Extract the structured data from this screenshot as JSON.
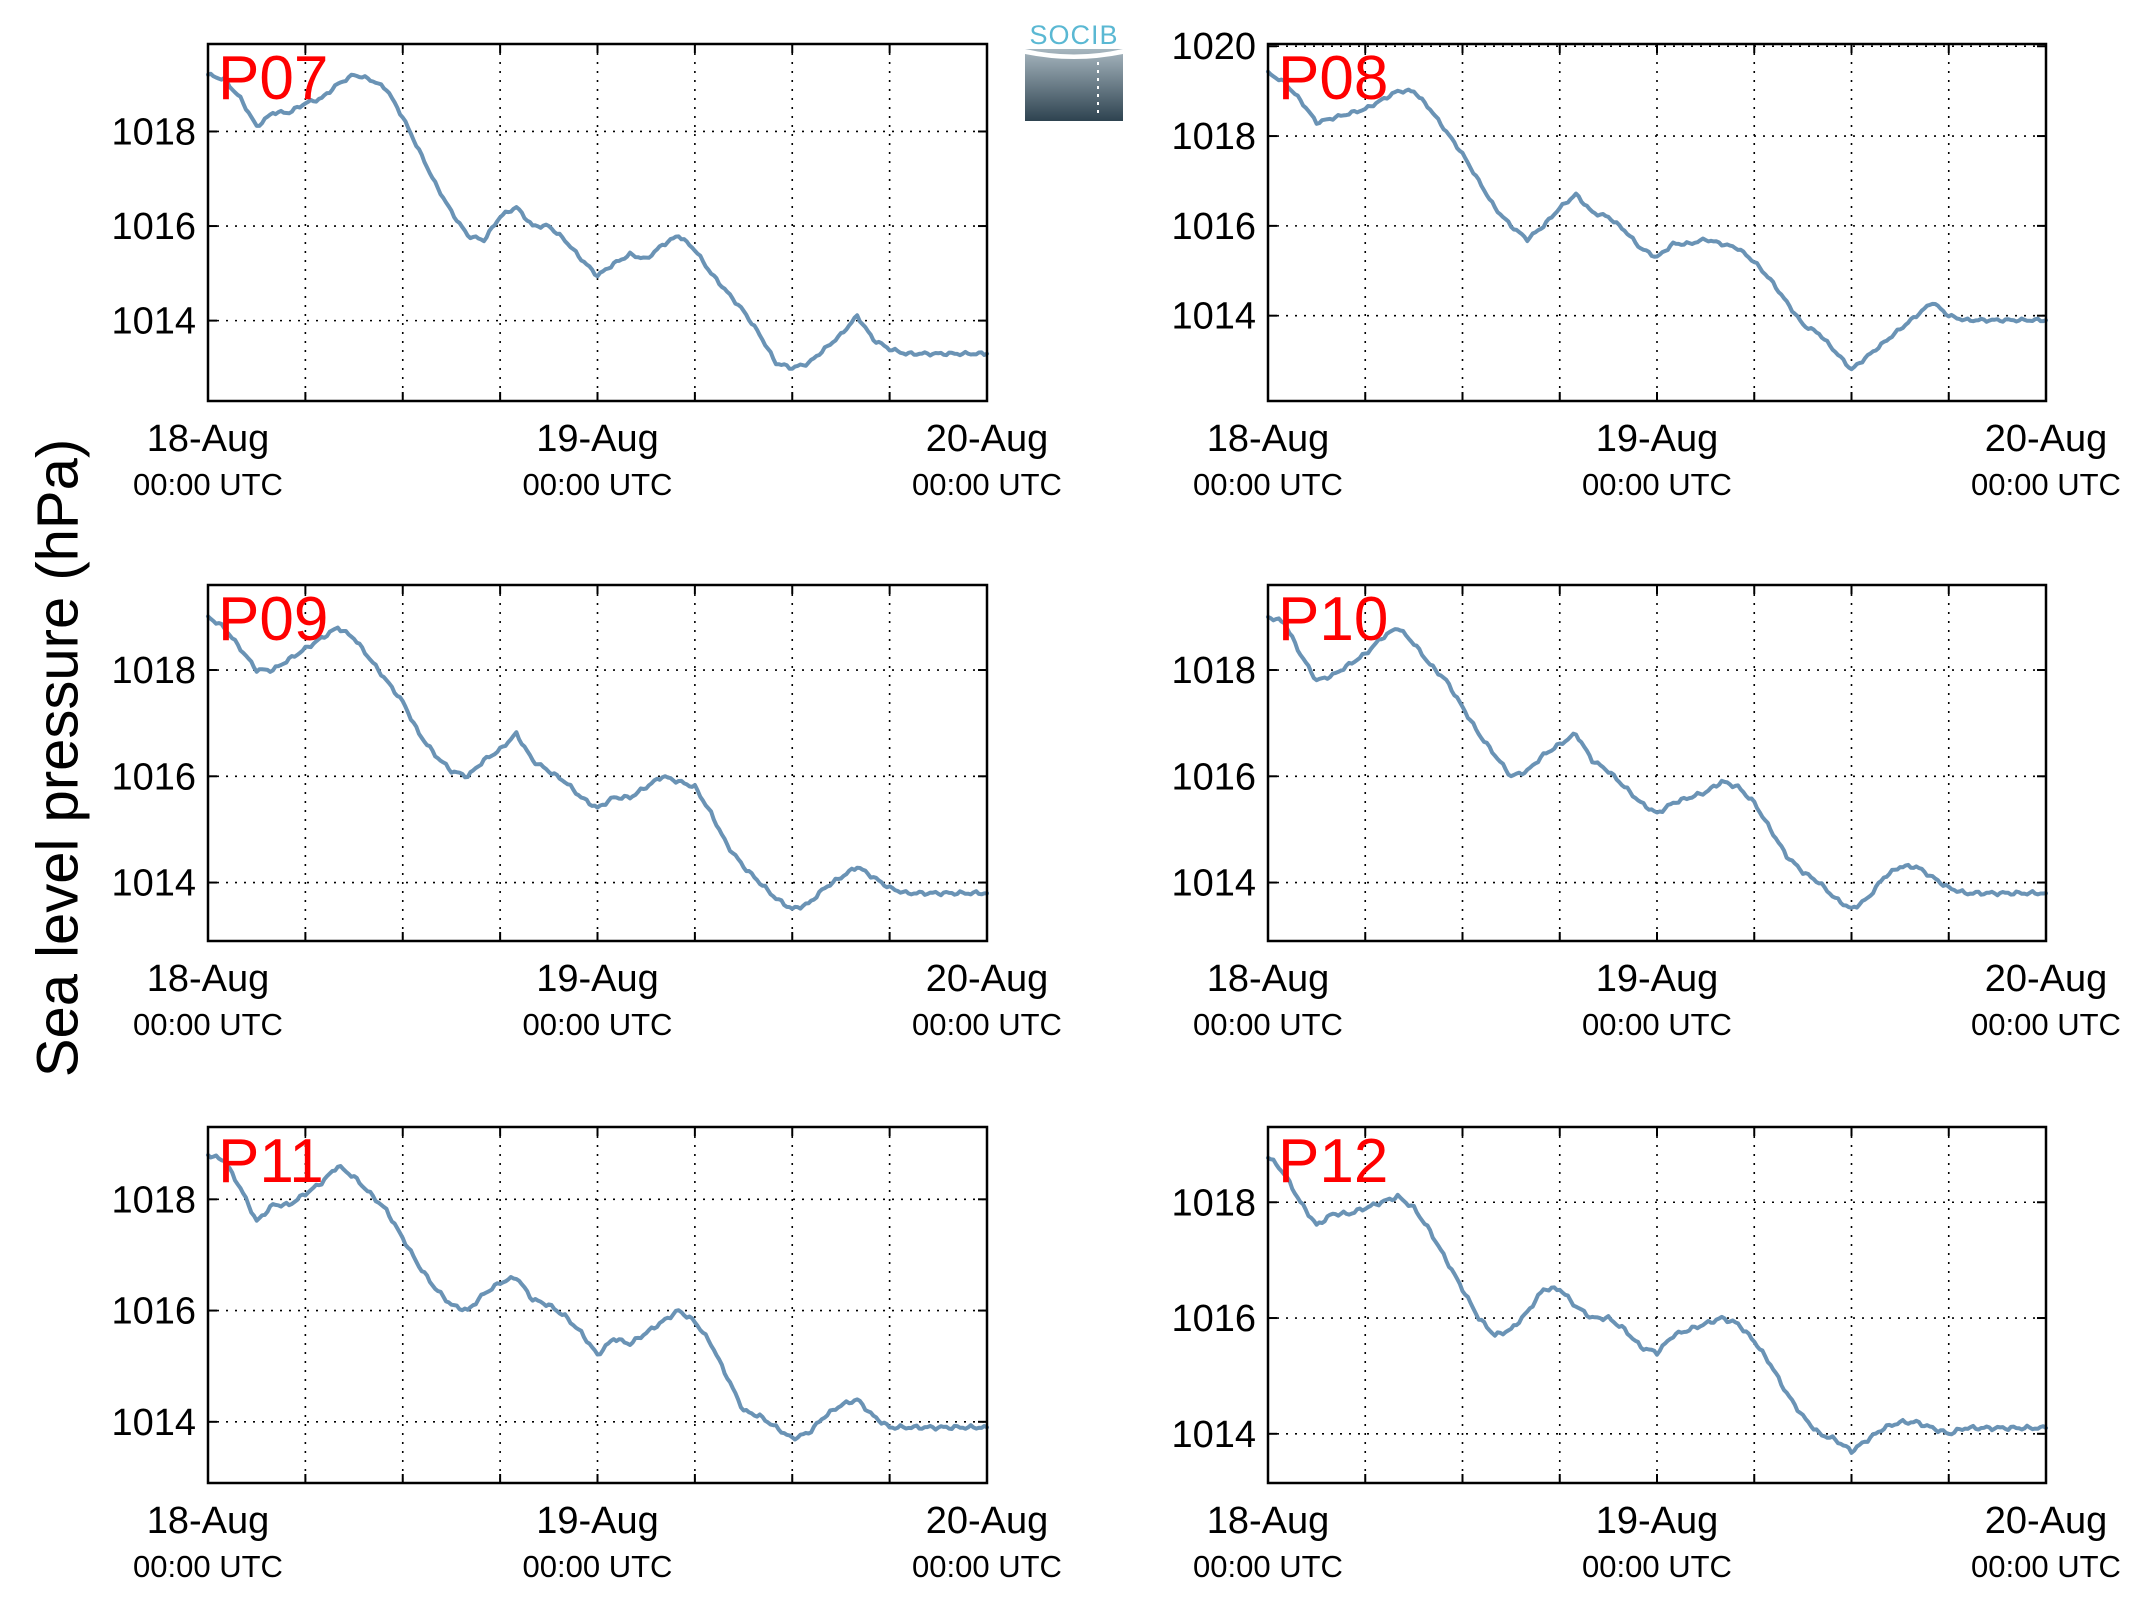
{
  "figure": {
    "ylabel": "Sea level pressure (hPa)",
    "logo": {
      "text": "SOCIB"
    },
    "colors": {
      "line": "#6a93b5",
      "title": "#ff0000"
    }
  },
  "chart_data": [
    {
      "type": "line",
      "title": "P07",
      "xticks": [
        {
          "date": "18-Aug",
          "time": "00:00 UTC"
        },
        {
          "date": "19-Aug",
          "time": "00:00 UTC"
        },
        {
          "date": "20-Aug",
          "time": "00:00 UTC"
        }
      ],
      "xlim": [
        0,
        48
      ],
      "ylim": [
        1012.3,
        1019.85
      ],
      "yticks": [
        1014,
        1016,
        1018
      ],
      "grid": true,
      "series": [
        {
          "x": [
            0,
            1,
            2,
            3,
            4,
            5,
            6,
            7,
            8,
            9,
            10,
            11,
            12,
            13,
            14,
            15,
            16,
            17,
            18,
            19,
            20,
            21,
            22,
            23,
            24,
            25,
            26,
            27,
            28,
            29,
            30,
            31,
            32,
            33,
            34,
            35,
            36,
            37,
            38,
            39,
            40,
            41,
            42,
            43,
            44,
            45,
            46,
            47,
            48
          ],
          "values": [
            1019.2,
            1019.1,
            1018.7,
            1018.1,
            1018.4,
            1018.4,
            1018.6,
            1018.7,
            1019.0,
            1019.2,
            1019.1,
            1018.9,
            1018.3,
            1017.6,
            1016.9,
            1016.3,
            1015.8,
            1015.7,
            1016.2,
            1016.4,
            1016.0,
            1016.0,
            1015.7,
            1015.3,
            1014.95,
            1015.2,
            1015.4,
            1015.3,
            1015.6,
            1015.8,
            1015.5,
            1015.0,
            1014.6,
            1014.2,
            1013.7,
            1013.1,
            1013.0,
            1013.1,
            1013.4,
            1013.7,
            1014.1,
            1013.6,
            1013.4,
            1013.3,
            1013.3,
            1013.3,
            1013.3,
            1013.3,
            1013.3
          ]
        }
      ]
    },
    {
      "type": "line",
      "title": "P08",
      "xticks": [
        {
          "date": "18-Aug",
          "time": "00:00 UTC"
        },
        {
          "date": "19-Aug",
          "time": "00:00 UTC"
        },
        {
          "date": "20-Aug",
          "time": "00:00 UTC"
        }
      ],
      "xlim": [
        0,
        48
      ],
      "ylim": [
        1012.1,
        1020.05
      ],
      "yticks": [
        1014,
        1016,
        1018,
        1020
      ],
      "grid": true,
      "series": [
        {
          "x": [
            0,
            1,
            2,
            3,
            4,
            5,
            6,
            7,
            8,
            9,
            10,
            11,
            12,
            13,
            14,
            15,
            16,
            17,
            18,
            19,
            20,
            21,
            22,
            23,
            24,
            25,
            26,
            27,
            28,
            29,
            30,
            31,
            32,
            33,
            34,
            35,
            36,
            37,
            38,
            39,
            40,
            41,
            42,
            43,
            44,
            45,
            46,
            47,
            48
          ],
          "values": [
            1019.4,
            1019.2,
            1018.8,
            1018.3,
            1018.4,
            1018.5,
            1018.6,
            1018.8,
            1019.0,
            1019.0,
            1018.6,
            1018.1,
            1017.6,
            1017.0,
            1016.4,
            1016.0,
            1015.7,
            1016.0,
            1016.4,
            1016.7,
            1016.3,
            1016.2,
            1015.9,
            1015.5,
            1015.3,
            1015.6,
            1015.6,
            1015.7,
            1015.6,
            1015.5,
            1015.2,
            1014.8,
            1014.3,
            1013.8,
            1013.6,
            1013.2,
            1012.8,
            1013.1,
            1013.4,
            1013.7,
            1014.0,
            1014.3,
            1014.0,
            1013.9,
            1013.9,
            1013.9,
            1013.9,
            1013.9,
            1013.9
          ]
        }
      ]
    },
    {
      "type": "line",
      "title": "P09",
      "xticks": [
        {
          "date": "18-Aug",
          "time": "00:00 UTC"
        },
        {
          "date": "19-Aug",
          "time": "00:00 UTC"
        },
        {
          "date": "20-Aug",
          "time": "00:00 UTC"
        }
      ],
      "xlim": [
        0,
        48
      ],
      "ylim": [
        1012.9,
        1019.6
      ],
      "yticks": [
        1014,
        1016,
        1018
      ],
      "grid": true,
      "series": [
        {
          "x": [
            0,
            1,
            2,
            3,
            4,
            5,
            6,
            7,
            8,
            9,
            10,
            11,
            12,
            13,
            14,
            15,
            16,
            17,
            18,
            19,
            20,
            21,
            22,
            23,
            24,
            25,
            26,
            27,
            28,
            29,
            30,
            31,
            32,
            33,
            34,
            35,
            36,
            37,
            38,
            39,
            40,
            41,
            42,
            43,
            44,
            45,
            46,
            47,
            48
          ],
          "values": [
            1019.0,
            1018.8,
            1018.4,
            1018.0,
            1018.0,
            1018.2,
            1018.4,
            1018.6,
            1018.8,
            1018.6,
            1018.2,
            1017.8,
            1017.4,
            1016.8,
            1016.4,
            1016.1,
            1016.0,
            1016.3,
            1016.5,
            1016.8,
            1016.3,
            1016.1,
            1015.9,
            1015.6,
            1015.4,
            1015.6,
            1015.6,
            1015.8,
            1016.0,
            1015.9,
            1015.8,
            1015.3,
            1014.7,
            1014.3,
            1014.0,
            1013.7,
            1013.5,
            1013.6,
            1013.9,
            1014.1,
            1014.3,
            1014.1,
            1013.9,
            1013.8,
            1013.8,
            1013.8,
            1013.8,
            1013.8,
            1013.8
          ]
        }
      ]
    },
    {
      "type": "line",
      "title": "P10",
      "xticks": [
        {
          "date": "18-Aug",
          "time": "00:00 UTC"
        },
        {
          "date": "19-Aug",
          "time": "00:00 UTC"
        },
        {
          "date": "20-Aug",
          "time": "00:00 UTC"
        }
      ],
      "xlim": [
        0,
        48
      ],
      "ylim": [
        1012.9,
        1019.6
      ],
      "yticks": [
        1014,
        1016,
        1018
      ],
      "grid": true,
      "series": [
        {
          "x": [
            0,
            1,
            2,
            3,
            4,
            5,
            6,
            7,
            8,
            9,
            10,
            11,
            12,
            13,
            14,
            15,
            16,
            17,
            18,
            19,
            20,
            21,
            22,
            23,
            24,
            25,
            26,
            27,
            28,
            29,
            30,
            31,
            32,
            33,
            34,
            35,
            36,
            37,
            38,
            39,
            40,
            41,
            42,
            43,
            44,
            45,
            46,
            47,
            48
          ],
          "values": [
            1019.0,
            1018.9,
            1018.3,
            1017.8,
            1017.9,
            1018.1,
            1018.3,
            1018.6,
            1018.8,
            1018.5,
            1018.1,
            1017.8,
            1017.3,
            1016.8,
            1016.4,
            1016.0,
            1016.1,
            1016.4,
            1016.6,
            1016.8,
            1016.3,
            1016.1,
            1015.8,
            1015.5,
            1015.3,
            1015.5,
            1015.6,
            1015.7,
            1015.9,
            1015.8,
            1015.5,
            1015.0,
            1014.5,
            1014.2,
            1014.0,
            1013.7,
            1013.5,
            1013.7,
            1014.1,
            1014.3,
            1014.3,
            1014.1,
            1013.9,
            1013.8,
            1013.8,
            1013.8,
            1013.8,
            1013.8,
            1013.8
          ]
        }
      ]
    },
    {
      "type": "line",
      "title": "P11",
      "xticks": [
        {
          "date": "18-Aug",
          "time": "00:00 UTC"
        },
        {
          "date": "19-Aug",
          "time": "00:00 UTC"
        },
        {
          "date": "20-Aug",
          "time": "00:00 UTC"
        }
      ],
      "xlim": [
        0,
        48
      ],
      "ylim": [
        1012.9,
        1019.3
      ],
      "yticks": [
        1014,
        1016,
        1018
      ],
      "grid": true,
      "series": [
        {
          "x": [
            0,
            1,
            2,
            3,
            4,
            5,
            6,
            7,
            8,
            9,
            10,
            11,
            12,
            13,
            14,
            15,
            16,
            17,
            18,
            19,
            20,
            21,
            22,
            23,
            24,
            25,
            26,
            27,
            28,
            29,
            30,
            31,
            32,
            33,
            34,
            35,
            36,
            37,
            38,
            39,
            40,
            41,
            42,
            43,
            44,
            45,
            46,
            47,
            48
          ],
          "values": [
            1018.8,
            1018.7,
            1018.2,
            1017.6,
            1017.9,
            1017.9,
            1018.1,
            1018.3,
            1018.6,
            1018.4,
            1018.1,
            1017.8,
            1017.3,
            1016.8,
            1016.4,
            1016.1,
            1016.0,
            1016.3,
            1016.5,
            1016.6,
            1016.2,
            1016.1,
            1015.9,
            1015.6,
            1015.2,
            1015.5,
            1015.4,
            1015.6,
            1015.8,
            1016.0,
            1015.8,
            1015.4,
            1014.8,
            1014.2,
            1014.1,
            1013.9,
            1013.7,
            1013.8,
            1014.1,
            1014.3,
            1014.4,
            1014.1,
            1013.9,
            1013.9,
            1013.9,
            1013.9,
            1013.9,
            1013.9,
            1013.9
          ]
        }
      ]
    },
    {
      "type": "line",
      "title": "P12",
      "xticks": [
        {
          "date": "18-Aug",
          "time": "00:00 UTC"
        },
        {
          "date": "19-Aug",
          "time": "00:00 UTC"
        },
        {
          "date": "20-Aug",
          "time": "00:00 UTC"
        }
      ],
      "xlim": [
        0,
        48
      ],
      "ylim": [
        1013.15,
        1019.3
      ],
      "yticks": [
        1014,
        1016,
        1018
      ],
      "grid": true,
      "series": [
        {
          "x": [
            0,
            1,
            2,
            3,
            4,
            5,
            6,
            7,
            8,
            9,
            10,
            11,
            12,
            13,
            14,
            15,
            16,
            17,
            18,
            19,
            20,
            21,
            22,
            23,
            24,
            25,
            26,
            27,
            28,
            29,
            30,
            31,
            32,
            33,
            34,
            35,
            36,
            37,
            38,
            39,
            40,
            41,
            42,
            43,
            44,
            45,
            46,
            47,
            48
          ],
          "values": [
            1018.8,
            1018.5,
            1018.0,
            1017.6,
            1017.8,
            1017.8,
            1017.9,
            1018.0,
            1018.1,
            1017.9,
            1017.5,
            1017.0,
            1016.5,
            1016.0,
            1015.7,
            1015.8,
            1016.1,
            1016.5,
            1016.5,
            1016.2,
            1016.0,
            1016.0,
            1015.8,
            1015.5,
            1015.4,
            1015.7,
            1015.8,
            1015.9,
            1016.0,
            1015.9,
            1015.6,
            1015.2,
            1014.7,
            1014.3,
            1014.0,
            1013.9,
            1013.7,
            1013.9,
            1014.1,
            1014.2,
            1014.2,
            1014.1,
            1014.0,
            1014.1,
            1014.1,
            1014.1,
            1014.1,
            1014.1,
            1014.1
          ]
        }
      ]
    }
  ]
}
